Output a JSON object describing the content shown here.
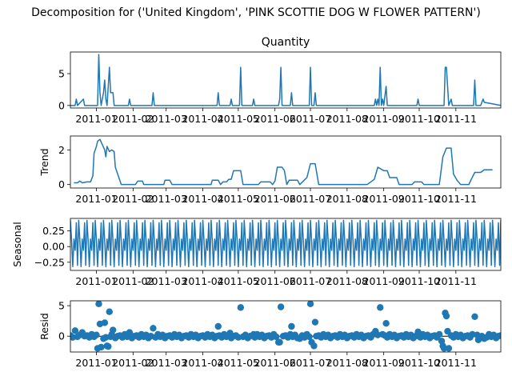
{
  "suptitle": "Decomposition for ('United Kingdom', 'PINK SCOTTIE DOG W FLOWER PATTERN')",
  "colors": {
    "line": "#1f77b4",
    "marker": "#1f77b4",
    "zero_line": "#000000"
  },
  "chart_data": [
    {
      "type": "line",
      "title": "Quantity",
      "ylabel": "",
      "xlabel": "",
      "ylim": [
        -0.4,
        8.4
      ],
      "yticks": [
        0,
        5
      ],
      "xlim": [
        "2010-12-10",
        "2011-12-09"
      ],
      "x_ticks": [
        "2011-01",
        "2011-02",
        "2011-03",
        "2011-04",
        "2011-05",
        "2011-06",
        "2011-07",
        "2011-08",
        "2011-09",
        "2011-10",
        "2011-11"
      ],
      "series": [
        {
          "points": [
            [
              "2010-12-10",
              0
            ],
            [
              "2010-12-14",
              0
            ],
            [
              "2010-12-15",
              1
            ],
            [
              "2010-12-16",
              0
            ],
            [
              "2010-12-21",
              1
            ],
            [
              "2010-12-22",
              0
            ],
            [
              "2011-01-02",
              0
            ],
            [
              "2011-01-03",
              8
            ],
            [
              "2011-01-04",
              2
            ],
            [
              "2011-01-05",
              0
            ],
            [
              "2011-01-07",
              2
            ],
            [
              "2011-01-08",
              4
            ],
            [
              "2011-01-09",
              1
            ],
            [
              "2011-01-10",
              0
            ],
            [
              "2011-01-12",
              6
            ],
            [
              "2011-01-13",
              2
            ],
            [
              "2011-01-14",
              2
            ],
            [
              "2011-01-15",
              2
            ],
            [
              "2011-01-16",
              0
            ],
            [
              "2011-01-28",
              0
            ],
            [
              "2011-01-29",
              1
            ],
            [
              "2011-01-30",
              0
            ],
            [
              "2011-02-17",
              0
            ],
            [
              "2011-02-18",
              2
            ],
            [
              "2011-02-19",
              0
            ],
            [
              "2011-04-13",
              0
            ],
            [
              "2011-04-14",
              2
            ],
            [
              "2011-04-15",
              0
            ],
            [
              "2011-04-24",
              0
            ],
            [
              "2011-04-25",
              1
            ],
            [
              "2011-04-26",
              0
            ],
            [
              "2011-05-02",
              0
            ],
            [
              "2011-05-03",
              6
            ],
            [
              "2011-05-04",
              0
            ],
            [
              "2011-05-13",
              0
            ],
            [
              "2011-05-14",
              1
            ],
            [
              "2011-05-15",
              0
            ],
            [
              "2011-06-04",
              0
            ],
            [
              "2011-06-05",
              1
            ],
            [
              "2011-06-06",
              6
            ],
            [
              "2011-06-07",
              0
            ],
            [
              "2011-06-14",
              0
            ],
            [
              "2011-06-15",
              2
            ],
            [
              "2011-06-16",
              0
            ],
            [
              "2011-06-30",
              0
            ],
            [
              "2011-07-01",
              6
            ],
            [
              "2011-07-02",
              0
            ],
            [
              "2011-07-04",
              0
            ],
            [
              "2011-07-05",
              2
            ],
            [
              "2011-07-06",
              0
            ],
            [
              "2011-08-24",
              0
            ],
            [
              "2011-08-25",
              1
            ],
            [
              "2011-08-26",
              0
            ],
            [
              "2011-08-27",
              1
            ],
            [
              "2011-08-28",
              0
            ],
            [
              "2011-08-29",
              6
            ],
            [
              "2011-08-30",
              0
            ],
            [
              "2011-08-31",
              1
            ],
            [
              "2011-09-01",
              0
            ],
            [
              "2011-09-03",
              3
            ],
            [
              "2011-09-04",
              0
            ],
            [
              "2011-09-29",
              0
            ],
            [
              "2011-09-30",
              1
            ],
            [
              "2011-10-01",
              0
            ],
            [
              "2011-10-22",
              0
            ],
            [
              "2011-10-23",
              6
            ],
            [
              "2011-10-24",
              6
            ],
            [
              "2011-10-25",
              3
            ],
            [
              "2011-10-26",
              0
            ],
            [
              "2011-10-28",
              1
            ],
            [
              "2011-10-29",
              0
            ],
            [
              "2011-11-16",
              0
            ],
            [
              "2011-11-17",
              4
            ],
            [
              "2011-11-18",
              0
            ],
            [
              "2011-11-22",
              0
            ],
            [
              "2011-11-24",
              1
            ],
            [
              "2011-11-25",
              0.5
            ],
            [
              "2011-12-09",
              0
            ]
          ]
        }
      ]
    },
    {
      "type": "line",
      "title": "",
      "ylabel": "Trend",
      "xlabel": "",
      "ylim": [
        -0.2,
        2.8
      ],
      "yticks": [
        0,
        2
      ],
      "xlim": [
        "2010-12-10",
        "2011-12-09"
      ],
      "x_ticks": [
        "2011-01",
        "2011-02",
        "2011-03",
        "2011-04",
        "2011-05",
        "2011-06",
        "2011-07",
        "2011-08",
        "2011-09",
        "2011-10",
        "2011-11"
      ],
      "series": [
        {
          "points": [
            [
              "2010-12-13",
              0.1
            ],
            [
              "2010-12-16",
              0.1
            ],
            [
              "2010-12-18",
              0.2
            ],
            [
              "2010-12-20",
              0.1
            ],
            [
              "2010-12-24",
              0.15
            ],
            [
              "2010-12-27",
              0.15
            ],
            [
              "2010-12-29",
              0.5
            ],
            [
              "2010-12-30",
              1.8
            ],
            [
              "2011-01-01",
              2.2
            ],
            [
              "2011-01-02",
              2.5
            ],
            [
              "2011-01-04",
              2.6
            ],
            [
              "2011-01-06",
              2.3
            ],
            [
              "2011-01-08",
              2.0
            ],
            [
              "2011-01-09",
              1.6
            ],
            [
              "2011-01-10",
              2.2
            ],
            [
              "2011-01-12",
              1.9
            ],
            [
              "2011-01-14",
              2.0
            ],
            [
              "2011-01-16",
              1.9
            ],
            [
              "2011-01-17",
              1.0
            ],
            [
              "2011-01-19",
              0.6
            ],
            [
              "2011-01-22",
              0
            ],
            [
              "2011-02-03",
              0
            ],
            [
              "2011-02-05",
              0.2
            ],
            [
              "2011-02-09",
              0.2
            ],
            [
              "2011-02-10",
              0
            ],
            [
              "2011-02-27",
              0
            ],
            [
              "2011-02-28",
              0.25
            ],
            [
              "2011-03-04",
              0.25
            ],
            [
              "2011-03-06",
              0
            ],
            [
              "2011-04-08",
              0
            ],
            [
              "2011-04-09",
              0.25
            ],
            [
              "2011-04-14",
              0.25
            ],
            [
              "2011-04-16",
              0
            ],
            [
              "2011-04-18",
              0.15
            ],
            [
              "2011-04-21",
              0.15
            ],
            [
              "2011-04-23",
              0.3
            ],
            [
              "2011-04-25",
              0.3
            ],
            [
              "2011-04-27",
              0.8
            ],
            [
              "2011-05-03",
              0.8
            ],
            [
              "2011-05-05",
              0
            ],
            [
              "2011-05-18",
              0
            ],
            [
              "2011-05-20",
              0.15
            ],
            [
              "2011-05-28",
              0.15
            ],
            [
              "2011-05-30",
              0
            ],
            [
              "2011-06-01",
              0.2
            ],
            [
              "2011-06-03",
              1.0
            ],
            [
              "2011-06-07",
              1.0
            ],
            [
              "2011-06-09",
              0.8
            ],
            [
              "2011-06-11",
              0
            ],
            [
              "2011-06-13",
              0.25
            ],
            [
              "2011-06-20",
              0.25
            ],
            [
              "2011-06-22",
              0
            ],
            [
              "2011-06-28",
              0.4
            ],
            [
              "2011-07-01",
              1.2
            ],
            [
              "2011-07-05",
              1.2
            ],
            [
              "2011-07-07",
              0.4
            ],
            [
              "2011-07-08",
              0
            ],
            [
              "2011-08-18",
              0
            ],
            [
              "2011-08-21",
              0.15
            ],
            [
              "2011-08-24",
              0.3
            ],
            [
              "2011-08-27",
              1.0
            ],
            [
              "2011-09-01",
              0.8
            ],
            [
              "2011-09-04",
              0.8
            ],
            [
              "2011-09-06",
              0.4
            ],
            [
              "2011-09-12",
              0.4
            ],
            [
              "2011-09-14",
              0
            ],
            [
              "2011-09-25",
              0
            ],
            [
              "2011-09-27",
              0.15
            ],
            [
              "2011-10-03",
              0.15
            ],
            [
              "2011-10-05",
              0
            ],
            [
              "2011-10-18",
              0
            ],
            [
              "2011-10-21",
              1.6
            ],
            [
              "2011-10-24",
              2.1
            ],
            [
              "2011-10-28",
              2.1
            ],
            [
              "2011-10-30",
              0.6
            ],
            [
              "2011-11-02",
              0.25
            ],
            [
              "2011-11-05",
              0
            ],
            [
              "2011-11-12",
              0
            ],
            [
              "2011-11-14",
              0.3
            ],
            [
              "2011-11-17",
              0.7
            ],
            [
              "2011-11-22",
              0.7
            ],
            [
              "2011-11-25",
              0.85
            ],
            [
              "2011-12-02",
              0.85
            ]
          ]
        }
      ]
    },
    {
      "type": "line",
      "title": "",
      "ylabel": "Seasonal",
      "xlabel": "",
      "ylim": [
        -0.38,
        0.45
      ],
      "yticks": [
        -0.25,
        0.0,
        0.25
      ],
      "ytick_labels": [
        "−0.25",
        "0.00",
        "0.25"
      ],
      "xlim": [
        "2010-12-10",
        "2011-12-09"
      ],
      "x_ticks": [
        "2011-01",
        "2011-02",
        "2011-03",
        "2011-04",
        "2011-05",
        "2011-06",
        "2011-07",
        "2011-08",
        "2011-09",
        "2011-10",
        "2011-11"
      ],
      "seasonal_period_days": 7,
      "seasonal_pattern": [
        0.42,
        0.1,
        -0.32,
        0.12,
        -0.06,
        0.38,
        -0.3
      ],
      "series": [
        {
          "points": []
        }
      ]
    },
    {
      "type": "scatter",
      "title": "",
      "ylabel": "Resid",
      "xlabel": "",
      "ylim": [
        -2.6,
        5.8
      ],
      "yticks": [
        0,
        5
      ],
      "xlim": [
        "2010-12-10",
        "2011-12-09"
      ],
      "x_ticks": [
        "2011-01",
        "2011-02",
        "2011-03",
        "2011-04",
        "2011-05",
        "2011-06",
        "2011-07",
        "2011-08",
        "2011-09",
        "2011-10",
        "2011-11"
      ],
      "zero_line": true,
      "series": [
        {
          "baseline_noise": [
            0.1,
            -0.2,
            0.3,
            -0.1,
            0.2,
            -0.3,
            0.0
          ],
          "points": [
            [
              "2010-12-14",
              0.9
            ],
            [
              "2010-12-20",
              0.6
            ],
            [
              "2011-01-02",
              -2.0
            ],
            [
              "2011-01-03",
              5.3
            ],
            [
              "2011-01-04",
              2.0
            ],
            [
              "2011-01-05",
              -1.8
            ],
            [
              "2011-01-07",
              -0.4
            ],
            [
              "2011-01-08",
              2.2
            ],
            [
              "2011-01-10",
              -1.6
            ],
            [
              "2011-01-11",
              -1.7
            ],
            [
              "2011-01-12",
              4.0
            ],
            [
              "2011-01-14",
              0.3
            ],
            [
              "2011-01-15",
              1.0
            ],
            [
              "2011-01-29",
              0.6
            ],
            [
              "2011-02-18",
              1.3
            ],
            [
              "2011-04-14",
              1.6
            ],
            [
              "2011-04-24",
              0.5
            ],
            [
              "2011-05-03",
              4.7
            ],
            [
              "2011-05-14",
              0.3
            ],
            [
              "2011-06-04",
              -1.0
            ],
            [
              "2011-06-05",
              -1.0
            ],
            [
              "2011-06-06",
              4.8
            ],
            [
              "2011-06-15",
              1.6
            ],
            [
              "2011-06-22",
              -0.4
            ],
            [
              "2011-07-01",
              5.3
            ],
            [
              "2011-07-02",
              -1.0
            ],
            [
              "2011-07-04",
              -1.6
            ],
            [
              "2011-07-05",
              2.3
            ],
            [
              "2011-08-25",
              0.8
            ],
            [
              "2011-08-29",
              4.7
            ],
            [
              "2011-08-31",
              0.3
            ],
            [
              "2011-09-03",
              2.1
            ],
            [
              "2011-09-30",
              0.7
            ],
            [
              "2011-10-20",
              -0.8
            ],
            [
              "2011-10-21",
              -1.6
            ],
            [
              "2011-10-22",
              -2.0
            ],
            [
              "2011-10-23",
              3.8
            ],
            [
              "2011-10-24",
              3.3
            ],
            [
              "2011-10-25",
              0.8
            ],
            [
              "2011-10-26",
              -2.0
            ],
            [
              "2011-11-17",
              3.2
            ],
            [
              "2011-11-20",
              -0.6
            ],
            [
              "2011-11-25",
              -0.4
            ]
          ]
        }
      ]
    }
  ]
}
